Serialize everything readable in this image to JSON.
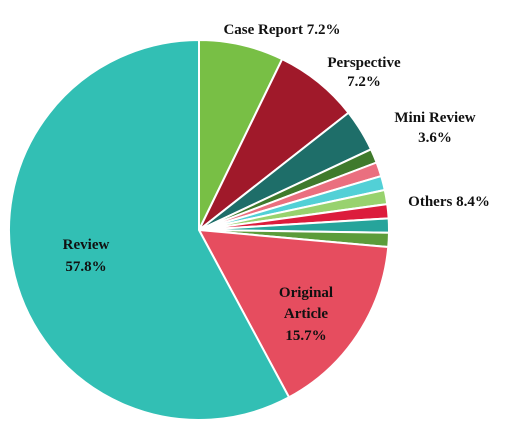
{
  "chart_data": {
    "type": "pie",
    "title": "",
    "slices": [
      {
        "label": "Case Report",
        "value": 7.2,
        "value_text": "7.2%",
        "color": "#78bf45"
      },
      {
        "label": "Perspective",
        "value": 7.2,
        "value_text": "7.2%",
        "color": "#a0192a"
      },
      {
        "label": "Mini Review",
        "value": 3.6,
        "value_text": "3.6%",
        "color": "#1e6e69"
      },
      {
        "label": "",
        "value": 1.2,
        "color": "#3f7a2c"
      },
      {
        "label": "",
        "value": 1.2,
        "color": "#ea6f7f"
      },
      {
        "label": "",
        "value": 1.2,
        "color": "#52d0d6"
      },
      {
        "label": "",
        "value": 1.2,
        "color": "#98d26e"
      },
      {
        "label": "",
        "value": 1.2,
        "color": "#dc1c3c"
      },
      {
        "label": "",
        "value": 1.2,
        "color": "#26a49b"
      },
      {
        "label": "",
        "value": 1.2,
        "color": "#5c9c3a"
      },
      {
        "label": "Original Article",
        "value": 15.7,
        "value_text": "15.7%",
        "color": "#e64d5f"
      },
      {
        "label": "Review",
        "value": 57.8,
        "value_text": "57.8%",
        "color": "#32bfb4"
      }
    ],
    "group_labels": [
      {
        "label": "Others",
        "value": 8.4,
        "value_text": "8.4%"
      }
    ],
    "legend": "none"
  }
}
